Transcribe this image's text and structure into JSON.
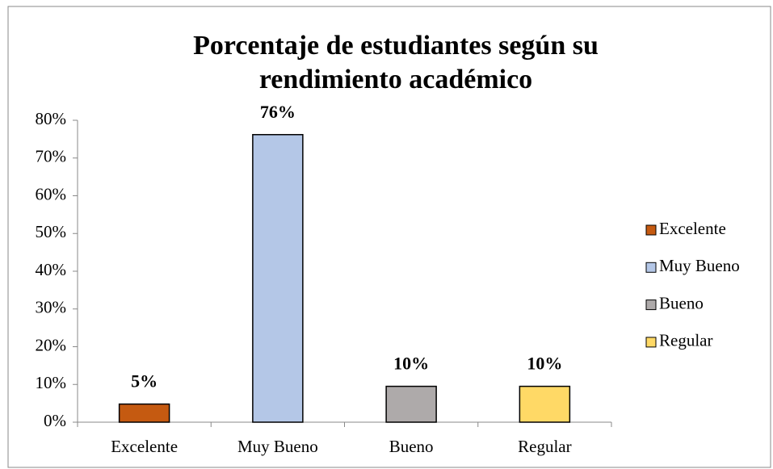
{
  "chart_data": {
    "type": "bar",
    "title": [
      "Porcentaje de estudiantes según su",
      "rendimiento académico"
    ],
    "categories": [
      "Excelente",
      "Muy Bueno",
      "Bueno",
      "Regular"
    ],
    "values": [
      4.8,
      76.2,
      9.5,
      9.5
    ],
    "value_labels": [
      "5%",
      "76%",
      "10%",
      "10%"
    ],
    "colors": [
      "#c55a11",
      "#b4c7e7",
      "#aeaaaa",
      "#ffd966"
    ],
    "ylim": [
      0,
      80
    ],
    "yticks": [
      {
        "value": 0,
        "label": "0%"
      },
      {
        "value": 10,
        "label": "10%"
      },
      {
        "value": 20,
        "label": "20%"
      },
      {
        "value": 30,
        "label": "30%"
      },
      {
        "value": 40,
        "label": "40%"
      },
      {
        "value": 50,
        "label": "50%"
      },
      {
        "value": 60,
        "label": "60%"
      },
      {
        "value": 70,
        "label": "70%"
      },
      {
        "value": 80,
        "label": "80%"
      }
    ],
    "legend": "right"
  }
}
